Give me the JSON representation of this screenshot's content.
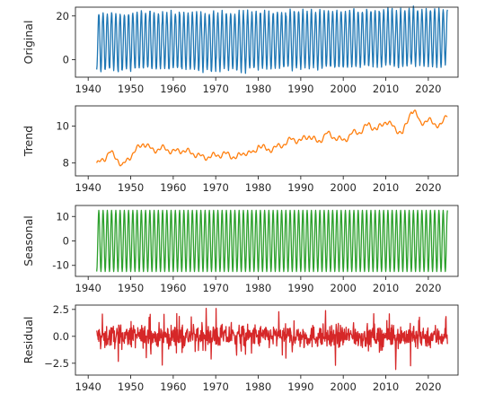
{
  "chart_data": [
    {
      "type": "line",
      "ylabel": "Original",
      "color": "#1f77b4",
      "xlim": [
        1937,
        2027
      ],
      "ylim": [
        -8,
        24
      ],
      "xticks": [
        1940,
        1950,
        1960,
        1970,
        1980,
        1990,
        2000,
        2010,
        2020
      ],
      "yticks": [
        0,
        20
      ],
      "series": [
        {
          "x_start": 1942.0,
          "x_end": 2024.5,
          "period_years": 1,
          "trend_knots": [
            [
              1942,
              7.9
            ],
            [
              1945,
              8.5
            ],
            [
              1948,
              8.0
            ],
            [
              1953,
              9.1
            ],
            [
              1958,
              8.8
            ],
            [
              1965,
              8.6
            ],
            [
              1970,
              8.4
            ],
            [
              1977,
              8.6
            ],
            [
              1980,
              9.0
            ],
            [
              1985,
              8.9
            ],
            [
              1990,
              9.4
            ],
            [
              1995,
              9.5
            ],
            [
              2000,
              9.3
            ],
            [
              2005,
              9.7
            ],
            [
              2010,
              10.2
            ],
            [
              2014,
              10.0
            ],
            [
              2016,
              10.9
            ],
            [
              2020,
              10.3
            ],
            [
              2024.5,
              10.7
            ]
          ],
          "seasonal_amplitude": 13,
          "residual_range": [
            -3.3,
            2.6
          ]
        }
      ]
    },
    {
      "type": "line",
      "ylabel": "Trend",
      "color": "#ff7f0e",
      "xlim": [
        1937,
        2027
      ],
      "ylim": [
        7.3,
        11.1
      ],
      "xticks": [
        1940,
        1950,
        1960,
        1970,
        1980,
        1990,
        2000,
        2010,
        2020
      ],
      "yticks": [
        8,
        10
      ],
      "series": [
        {
          "knots": [
            [
              1942,
              7.9
            ],
            [
              1944,
              8.3
            ],
            [
              1945,
              8.6
            ],
            [
              1947,
              8.2
            ],
            [
              1948,
              7.8
            ],
            [
              1950,
              8.4
            ],
            [
              1953,
              9.1
            ],
            [
              1955,
              8.7
            ],
            [
              1958,
              8.8
            ],
            [
              1960,
              8.6
            ],
            [
              1962,
              8.7
            ],
            [
              1965,
              8.5
            ],
            [
              1967,
              8.3
            ],
            [
              1970,
              8.4
            ],
            [
              1972,
              8.5
            ],
            [
              1975,
              8.3
            ],
            [
              1977,
              8.6
            ],
            [
              1979,
              8.5
            ],
            [
              1980,
              9.0
            ],
            [
              1982,
              8.7
            ],
            [
              1985,
              8.9
            ],
            [
              1988,
              9.3
            ],
            [
              1990,
              9.2
            ],
            [
              1992,
              9.5
            ],
            [
              1994,
              9.1
            ],
            [
              1996,
              9.6
            ],
            [
              1998,
              9.4
            ],
            [
              2000,
              9.2
            ],
            [
              2002,
              9.6
            ],
            [
              2004,
              9.7
            ],
            [
              2006,
              10.1
            ],
            [
              2008,
              9.8
            ],
            [
              2010,
              10.3
            ],
            [
              2012,
              9.9
            ],
            [
              2014,
              9.6
            ],
            [
              2015,
              10.2
            ],
            [
              2016,
              10.9
            ],
            [
              2017,
              10.7
            ],
            [
              2018,
              10.2
            ],
            [
              2020,
              10.3
            ],
            [
              2022,
              10.1
            ],
            [
              2023,
              10.0
            ],
            [
              2024.5,
              10.7
            ]
          ]
        }
      ]
    },
    {
      "type": "line",
      "ylabel": "Seasonal",
      "color": "#2ca02c",
      "xlim": [
        1937,
        2027
      ],
      "ylim": [
        -14.5,
        14.5
      ],
      "xticks": [
        1940,
        1950,
        1960,
        1970,
        1980,
        1990,
        2000,
        2010,
        2020
      ],
      "yticks": [
        -10,
        0,
        10
      ],
      "series": [
        {
          "x_start": 1942.0,
          "x_end": 2024.5,
          "period_years": 1,
          "amplitude": 12.5
        }
      ]
    },
    {
      "type": "line",
      "ylabel": "Residual",
      "color": "#d62728",
      "xlim": [
        1937,
        2027
      ],
      "ylim": [
        -3.6,
        2.9
      ],
      "xticks": [
        1940,
        1950,
        1960,
        1970,
        1980,
        1990,
        2000,
        2010,
        2020
      ],
      "yticks": [
        -2.5,
        0.0,
        2.5
      ],
      "ytick_labels": [
        "−2.5",
        "0.0",
        "2.5"
      ],
      "series": [
        {
          "x_start": 1942.0,
          "x_end": 2024.5,
          "range": [
            -3.3,
            2.6
          ]
        }
      ]
    }
  ]
}
